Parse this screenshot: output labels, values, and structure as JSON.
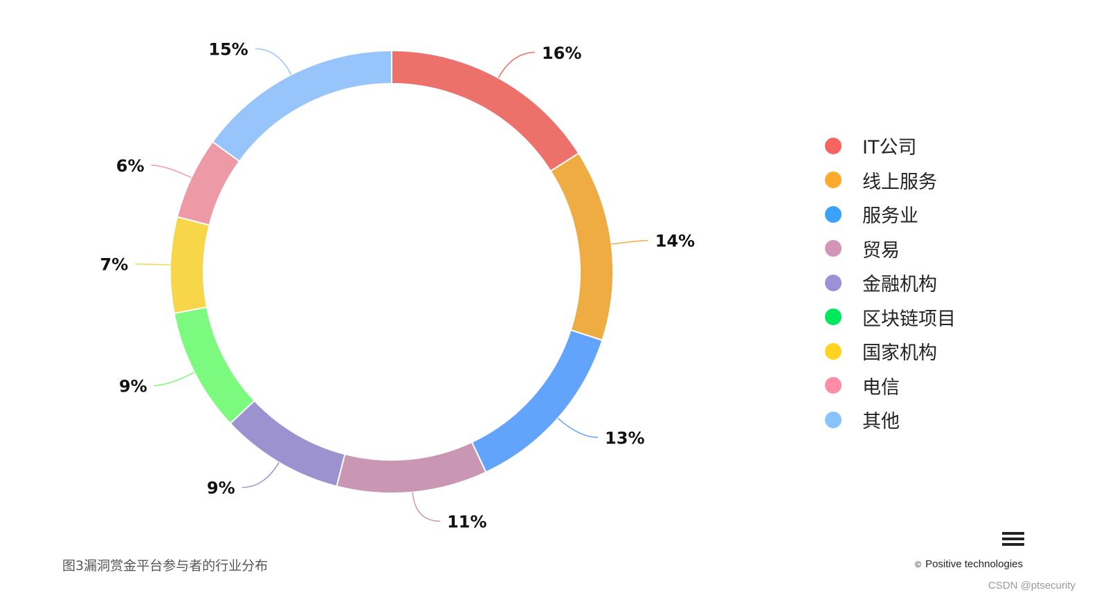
{
  "chart_data": {
    "type": "pie",
    "variant": "donut",
    "labels": [
      "IT公司",
      "线上服务",
      "服务业",
      "贸易",
      "金融机构",
      "区块链项目",
      "国家机构",
      "电信",
      "其他"
    ],
    "values": [
      16,
      14,
      13,
      11,
      9,
      9,
      7,
      6,
      15
    ],
    "value_labels": [
      "16%",
      "14%",
      "13%",
      "11%",
      "9%",
      "9%",
      "7%",
      "6%",
      "15%"
    ],
    "colors": [
      "#ec716b",
      "#eeac42",
      "#62a3fb",
      "#c997b3",
      "#9b92cf",
      "#7cfa7f",
      "#f7d649",
      "#ee99a6",
      "#96c4fb"
    ],
    "legend_colors": [
      "#f76560",
      "#ffaa2c",
      "#3aa2fc",
      "#d395b7",
      "#9d90d6",
      "#00e85c",
      "#ffd420",
      "#ff8ea5",
      "#87c4fd"
    ],
    "legend_position": "right"
  },
  "caption": "图3漏洞赏金平台参与者的行业分布",
  "copyright": "Positive technologies",
  "copyright_icon": "©",
  "watermark": "CSDN @ptsecurity",
  "menu_icon": "hamburger-menu-icon"
}
